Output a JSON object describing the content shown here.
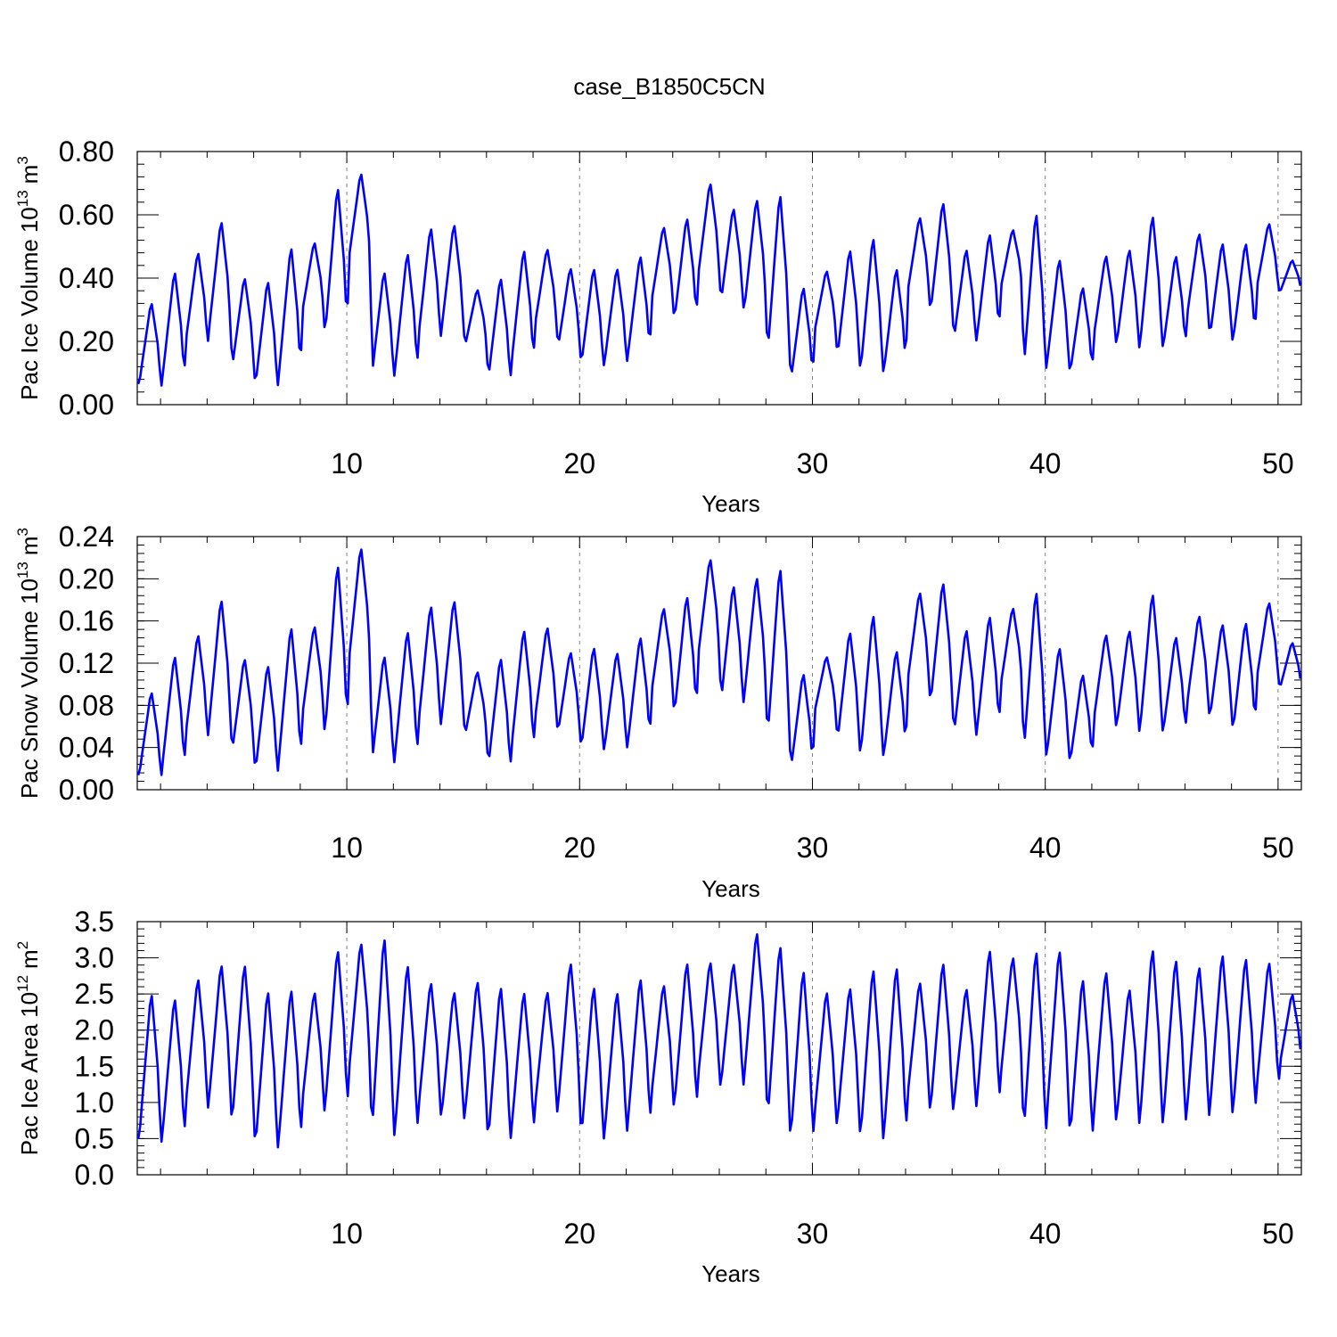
{
  "figure": {
    "title": "case_B1850C5CN"
  },
  "chart_data": [
    {
      "type": "line",
      "panel": "top",
      "ylabel": "Pac Ice Volume",
      "yunit_base": "10",
      "yunit_exp": "13",
      "yunit_suffix": "m",
      "yunit_power": "3",
      "xlabel": "Years",
      "xlim": [
        1,
        51
      ],
      "ylim": [
        0,
        0.8
      ],
      "x_ticks": [
        10,
        20,
        30,
        40,
        50
      ],
      "x_tick_labels": [
        "10",
        "20",
        "30",
        "40",
        "50"
      ],
      "y_ticks": [
        0,
        0.2,
        0.4,
        0.6,
        0.8
      ],
      "y_tick_labels": [
        "0.00",
        "0.20",
        "0.40",
        "0.60",
        "0.80"
      ],
      "y_minor_step": 0.04,
      "grid": "dashed vertical at decade ticks",
      "line_color": "#0000ff",
      "annual": {
        "min": [
          0.03,
          0.04,
          0.16,
          0.19,
          0.08,
          0.02,
          0.04,
          0.26,
          0.17,
          0.42,
          0.05,
          0.07,
          0.17,
          0.2,
          0.16,
          0.04,
          0.09,
          0.22,
          0.15,
          0.09,
          0.1,
          0.12,
          0.29,
          0.23,
          0.36,
          0.29,
          0.26,
          0.1,
          0.04,
          0.2,
          0.11,
          0.06,
          0.07,
          0.32,
          0.25,
          0.17,
          0.18,
          0.34,
          0.05,
          0.09,
          0.07,
          0.18,
          0.16,
          0.14,
          0.15,
          0.24,
          0.18,
          0.17,
          0.34,
          0.34
        ],
        "max": [
          0.33,
          0.43,
          0.49,
          0.59,
          0.41,
          0.4,
          0.51,
          0.52,
          0.7,
          0.74,
          0.43,
          0.49,
          0.57,
          0.58,
          0.37,
          0.41,
          0.5,
          0.5,
          0.44,
          0.44,
          0.44,
          0.48,
          0.57,
          0.6,
          0.71,
          0.63,
          0.66,
          0.68,
          0.38,
          0.43,
          0.5,
          0.54,
          0.44,
          0.6,
          0.65,
          0.5,
          0.55,
          0.56,
          0.62,
          0.47,
          0.38,
          0.48,
          0.5,
          0.61,
          0.48,
          0.55,
          0.52,
          0.52,
          0.58,
          0.46
        ]
      }
    },
    {
      "type": "line",
      "panel": "middle",
      "ylabel": "Pac Snow Volume",
      "yunit_base": "10",
      "yunit_exp": "13",
      "yunit_suffix": "m",
      "yunit_power": "3",
      "xlabel": "Years",
      "xlim": [
        1,
        51
      ],
      "ylim": [
        0,
        0.24
      ],
      "x_ticks": [
        10,
        20,
        30,
        40,
        50
      ],
      "x_tick_labels": [
        "10",
        "20",
        "30",
        "40",
        "50"
      ],
      "y_ticks": [
        0,
        0.04,
        0.08,
        0.12,
        0.16,
        0.2,
        0.24
      ],
      "y_tick_labels": [
        "0.00",
        "0.04",
        "0.08",
        "0.12",
        "0.16",
        "0.20",
        "0.24"
      ],
      "y_minor_step": 0.008,
      "grid": "dashed vertical at decade ticks",
      "line_color": "#0000ff",
      "annual": {
        "min": [
          0.003,
          0.01,
          0.04,
          0.045,
          0.025,
          0.005,
          0.012,
          0.057,
          0.037,
          0.105,
          0.013,
          0.02,
          0.048,
          0.055,
          0.043,
          0.009,
          0.027,
          0.055,
          0.045,
          0.028,
          0.03,
          0.033,
          0.08,
          0.058,
          0.112,
          0.07,
          0.075,
          0.03,
          0.008,
          0.065,
          0.033,
          0.018,
          0.022,
          0.09,
          0.068,
          0.04,
          0.045,
          0.088,
          0.015,
          0.022,
          0.017,
          0.055,
          0.05,
          0.042,
          0.045,
          0.068,
          0.058,
          0.045,
          0.095,
          0.09
        ],
        "max": [
          0.095,
          0.13,
          0.15,
          0.184,
          0.127,
          0.121,
          0.158,
          0.158,
          0.218,
          0.233,
          0.13,
          0.154,
          0.178,
          0.183,
          0.114,
          0.128,
          0.155,
          0.157,
          0.133,
          0.138,
          0.133,
          0.148,
          0.175,
          0.187,
          0.222,
          0.197,
          0.205,
          0.215,
          0.113,
          0.128,
          0.153,
          0.17,
          0.135,
          0.19,
          0.2,
          0.155,
          0.168,
          0.175,
          0.193,
          0.138,
          0.112,
          0.15,
          0.154,
          0.19,
          0.148,
          0.168,
          0.16,
          0.162,
          0.18,
          0.141
        ]
      }
    },
    {
      "type": "line",
      "panel": "bottom",
      "ylabel": "Pac Ice Area",
      "yunit_base": "10",
      "yunit_exp": "12",
      "yunit_suffix": "m",
      "yunit_power": "2",
      "xlabel": "Years",
      "xlim": [
        1,
        51
      ],
      "ylim": [
        0,
        3.5
      ],
      "x_ticks": [
        10,
        20,
        30,
        40,
        50
      ],
      "x_tick_labels": [
        "10",
        "20",
        "30",
        "40",
        "50"
      ],
      "y_ticks": [
        0,
        0.5,
        1,
        1.5,
        2,
        2.5,
        3,
        3.5
      ],
      "y_tick_labels": [
        "0.0",
        "0.5",
        "1.0",
        "1.5",
        "2.0",
        "2.5",
        "3.0",
        "3.5"
      ],
      "y_minor_step": 0.1,
      "grid": "dashed vertical at decade ticks",
      "line_color": "#0000ff",
      "annual": {
        "min": [
          0.22,
          0.3,
          0.73,
          0.78,
          0.45,
          0.12,
          0.22,
          0.77,
          0.68,
          1.13,
          0.22,
          0.35,
          0.68,
          0.62,
          0.6,
          0.22,
          0.4,
          0.72,
          0.7,
          0.25,
          0.35,
          0.5,
          0.88,
          0.72,
          1.1,
          1.05,
          1.12,
          0.45,
          0.25,
          0.55,
          0.52,
          0.27,
          0.28,
          0.85,
          0.65,
          0.78,
          0.8,
          1.12,
          0.25,
          0.58,
          0.28,
          0.55,
          0.58,
          0.48,
          0.5,
          0.6,
          0.65,
          0.65,
          0.97,
          1.4
        ],
        "max": [
          2.57,
          2.5,
          2.77,
          2.97,
          2.98,
          2.61,
          2.63,
          2.58,
          3.18,
          3.27,
          3.37,
          2.98,
          2.72,
          2.59,
          2.74,
          2.67,
          2.59,
          2.59,
          3.0,
          2.67,
          2.59,
          2.78,
          2.68,
          3.0,
          3.0,
          2.98,
          3.42,
          3.25,
          2.9,
          2.59,
          2.65,
          2.92,
          2.95,
          2.72,
          3.0,
          2.63,
          3.18,
          3.07,
          3.18,
          3.18,
          2.78,
          2.88,
          2.63,
          3.2,
          3.05,
          2.95,
          3.12,
          3.07,
          3.0,
          2.53
        ]
      }
    }
  ]
}
